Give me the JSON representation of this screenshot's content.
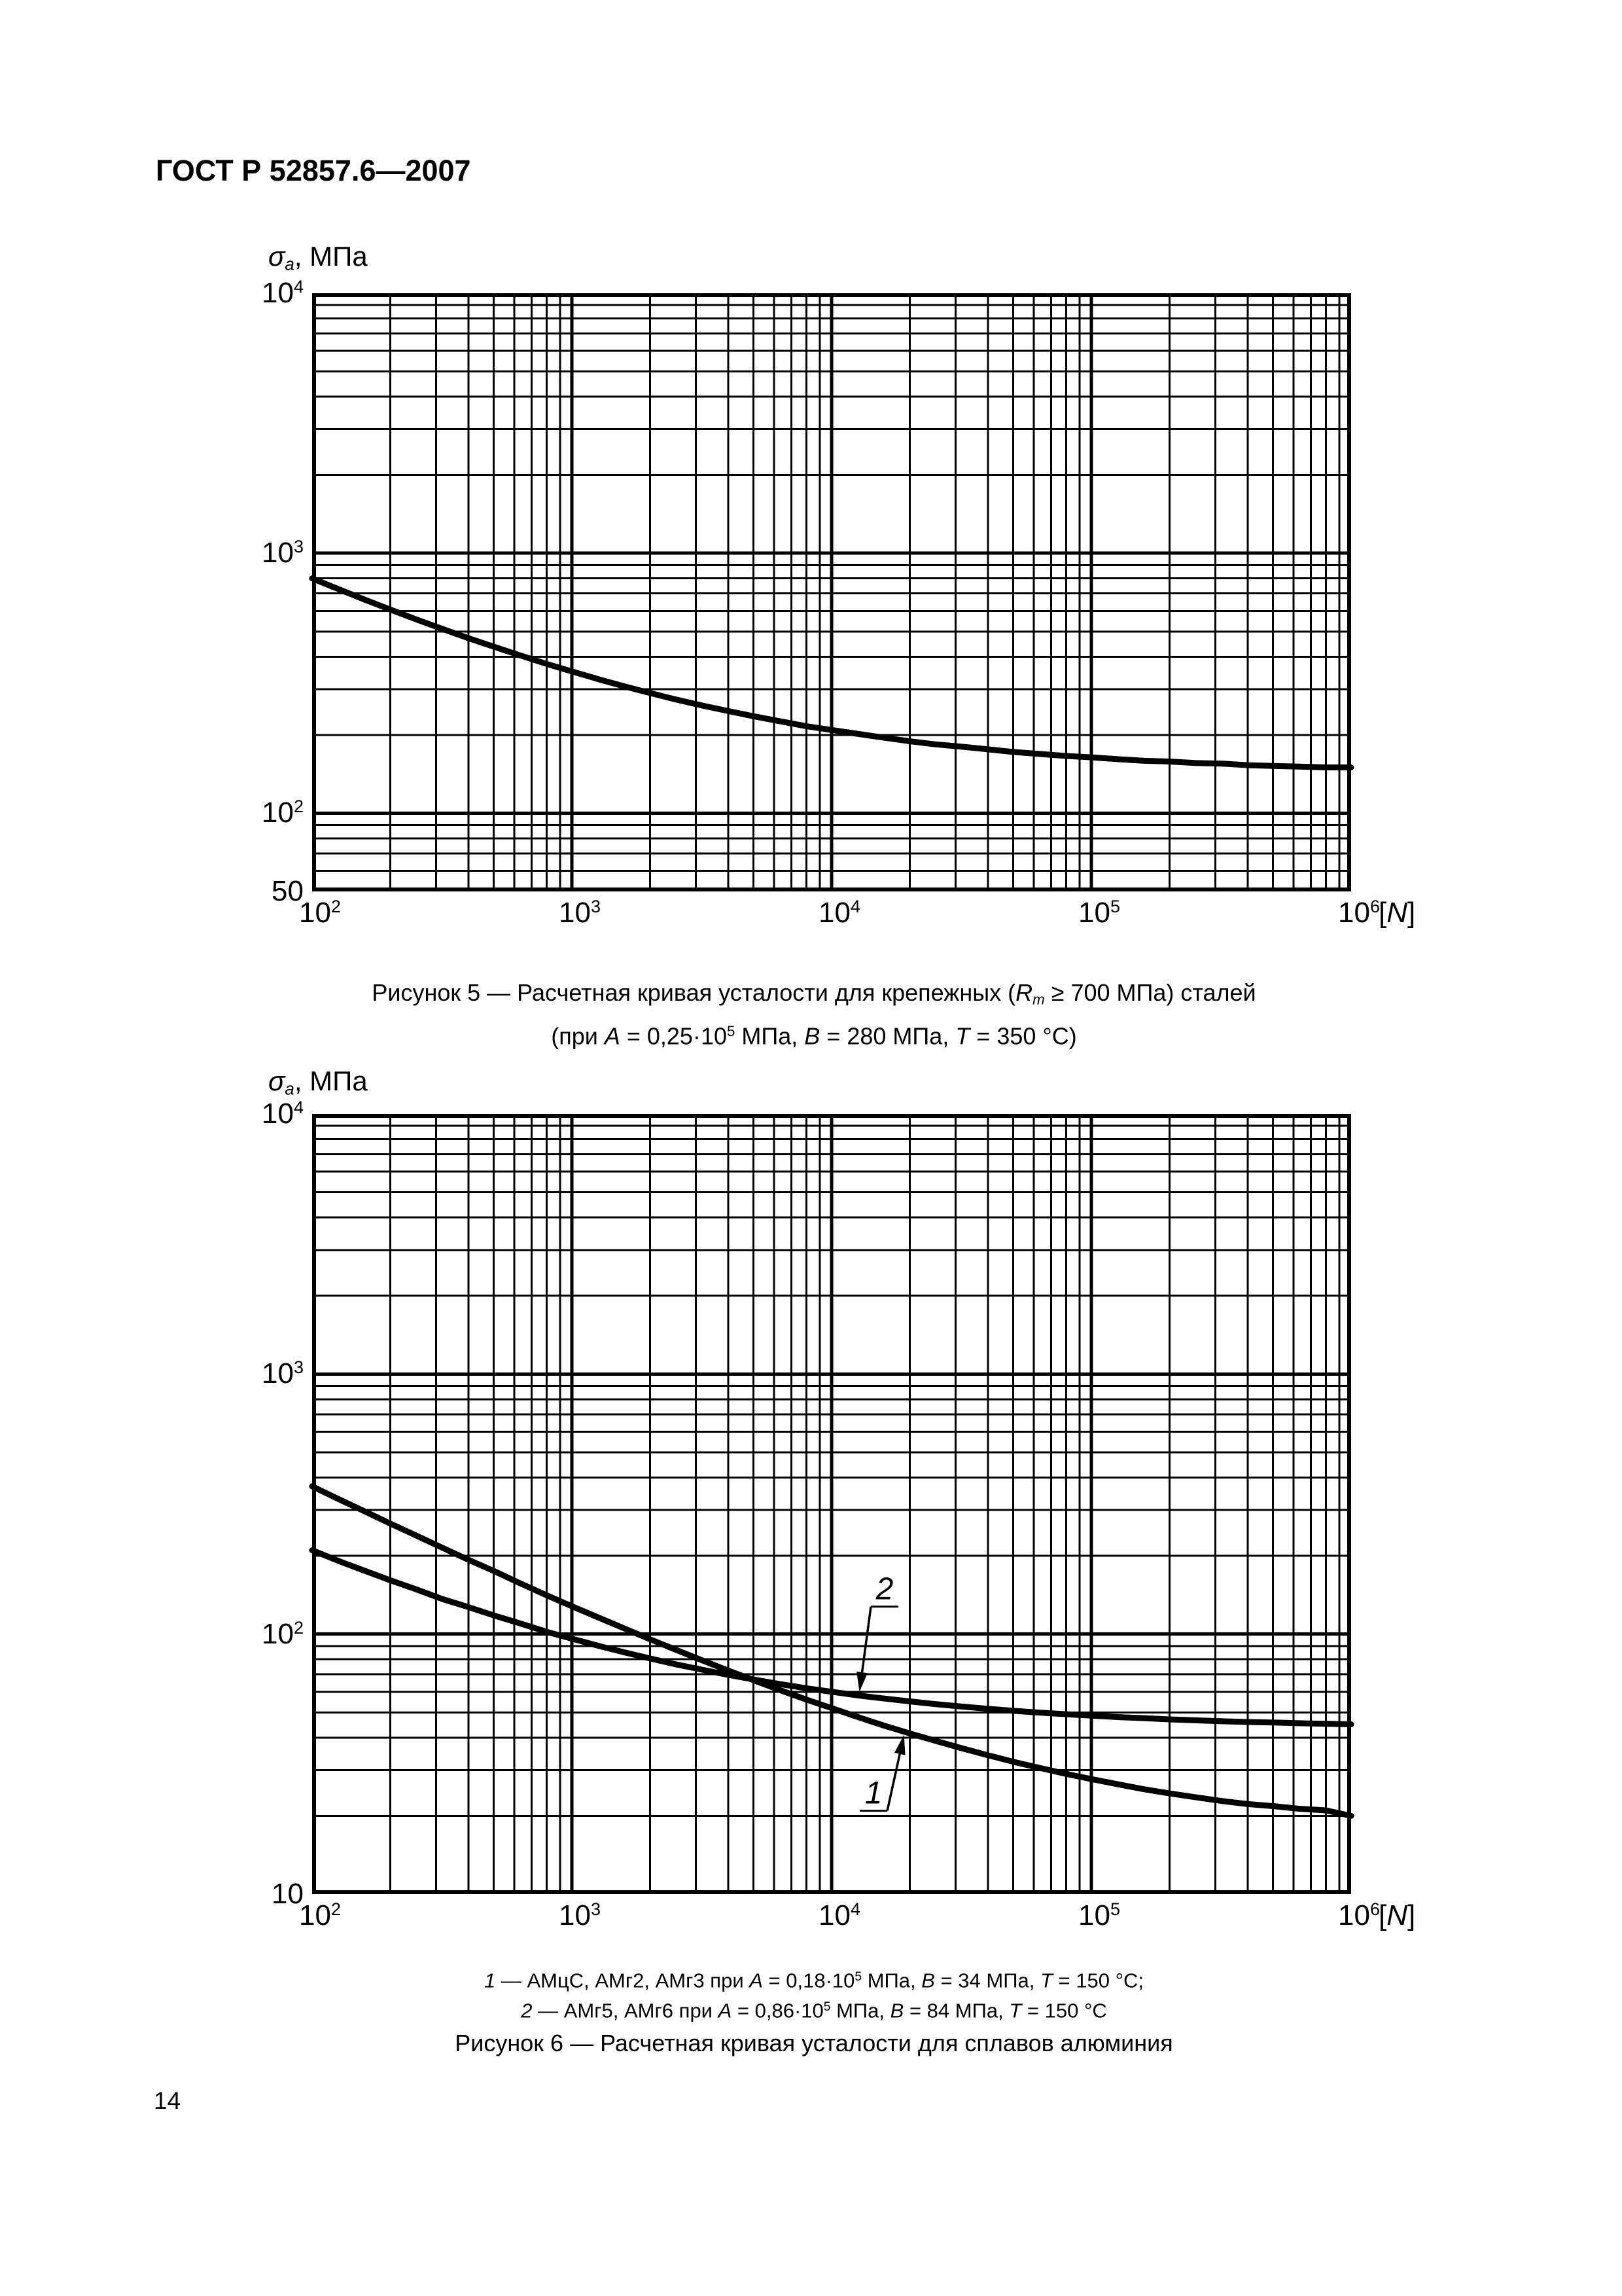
{
  "page": {
    "header": "ГОСТ Р 52857.6—2007",
    "page_number": "14",
    "background": "#ffffff",
    "ink_color": "#000000"
  },
  "figure5": {
    "y_axis_title": [
      {
        "text": "σ",
        "style": "i"
      },
      {
        "text": "a",
        "style": "i-sub"
      },
      {
        "text": ", МПа"
      }
    ],
    "y_ticks": [
      {
        "base": "10",
        "exp": "4",
        "value": 10000
      },
      {
        "base": "10",
        "exp": "3",
        "value": 1000
      },
      {
        "base": "10",
        "exp": "2",
        "value": 100
      },
      {
        "base": "50",
        "exp": "",
        "value": 50
      }
    ],
    "x_ticks": [
      {
        "base": "10",
        "exp": "2",
        "value": 100
      },
      {
        "base": "10",
        "exp": "3",
        "value": 1000
      },
      {
        "base": "10",
        "exp": "4",
        "value": 10000
      },
      {
        "base": "10",
        "exp": "5",
        "value": 100000
      },
      {
        "base": "10",
        "exp": "6",
        "value": 1000000
      }
    ],
    "x_unit": [
      {
        "text": "["
      },
      {
        "text": "N",
        "style": "i"
      },
      {
        "text": "]"
      }
    ],
    "caption_line1": [
      {
        "text": "Рисунок 5  —  Расчетная кривая усталости для крепежных ("
      },
      {
        "text": "R",
        "style": "i"
      },
      {
        "text": "m",
        "style": "i-sub"
      },
      {
        "text": " ≥ 700 МПа) сталей"
      }
    ],
    "caption_line2": [
      {
        "text": "(при "
      },
      {
        "text": "A",
        "style": "i"
      },
      {
        "text": " = 0,25·10"
      },
      {
        "text": "5",
        "style": "sup"
      },
      {
        "text": " МПа, "
      },
      {
        "text": "B",
        "style": "i"
      },
      {
        "text": " = 280 МПа, "
      },
      {
        "text": "T",
        "style": "i"
      },
      {
        "text": " = 350 °C)"
      }
    ]
  },
  "figure6": {
    "y_axis_title": [
      {
        "text": "σ",
        "style": "i"
      },
      {
        "text": "a",
        "style": "i-sub"
      },
      {
        "text": ", МПа"
      }
    ],
    "y_ticks": [
      {
        "base": "10",
        "exp": "4",
        "value": 10000
      },
      {
        "base": "10",
        "exp": "3",
        "value": 1000
      },
      {
        "base": "10",
        "exp": "2",
        "value": 100
      },
      {
        "base": "10",
        "exp": "",
        "value": 10
      }
    ],
    "x_ticks": [
      {
        "base": "10",
        "exp": "2",
        "value": 100
      },
      {
        "base": "10",
        "exp": "3",
        "value": 1000
      },
      {
        "base": "10",
        "exp": "4",
        "value": 10000
      },
      {
        "base": "10",
        "exp": "5",
        "value": 100000
      },
      {
        "base": "10",
        "exp": "6",
        "value": 1000000
      }
    ],
    "x_unit": [
      {
        "text": "["
      },
      {
        "text": "N",
        "style": "i"
      },
      {
        "text": "]"
      }
    ],
    "legend_line1": [
      {
        "text": "1",
        "style": "i"
      },
      {
        "text": " — АМцС, АМг2, АМг3 при "
      },
      {
        "text": "A",
        "style": "i"
      },
      {
        "text": " = 0,18·10"
      },
      {
        "text": "5",
        "style": "sup"
      },
      {
        "text": " МПа, "
      },
      {
        "text": "B",
        "style": "i"
      },
      {
        "text": " = 34 МПа, "
      },
      {
        "text": "T",
        "style": "i"
      },
      {
        "text": " = 150 °C;"
      }
    ],
    "legend_line2": [
      {
        "text": "2",
        "style": "i"
      },
      {
        "text": " — АМг5, АМг6 при "
      },
      {
        "text": "A",
        "style": "i"
      },
      {
        "text": " = 0,86·10"
      },
      {
        "text": "5",
        "style": "sup"
      },
      {
        "text": " МПа, "
      },
      {
        "text": "B",
        "style": "i"
      },
      {
        "text": " = 84 МПа, "
      },
      {
        "text": "T",
        "style": "i"
      },
      {
        "text": " = 150 °C"
      }
    ],
    "caption": [
      {
        "text": "Рисунок 6  —  Расчетная кривая усталости для сплавов алюминия"
      }
    ]
  },
  "chart_data": [
    {
      "id": "figure5",
      "type": "line",
      "title": "Расчетная кривая усталости для крепежных (Rm ≥ 700 МПа) сталей",
      "subtitle": "при A = 0,25·10^5 МПа, B = 280 МПа, T = 350 °C",
      "xlabel": "[N]",
      "ylabel": "σa, МПа",
      "x_scale": "log",
      "y_scale": "log",
      "x_range": [
        100,
        1000000
      ],
      "y_range": [
        50,
        10000
      ],
      "grid": "log-minor-and-major",
      "legend_position": "none",
      "series": [
        {
          "name": "крепежные стали Rm ≥ 700 МПа (A = 0,25·10^5 МПа, B = 280 МПа, T = 350 °C)",
          "points": [
            [
              100,
              800
            ],
            [
              130,
              719
            ],
            [
              160,
              662
            ],
            [
              200,
              607
            ],
            [
              250,
              558
            ],
            [
              320,
              510
            ],
            [
              400,
              471
            ],
            [
              500,
              437
            ],
            [
              630,
              405
            ],
            [
              800,
              375
            ],
            [
              1000,
              351
            ],
            [
              1300,
              325
            ],
            [
              1600,
              307
            ],
            [
              2000,
              290
            ],
            [
              2500,
              274
            ],
            [
              3200,
              259
            ],
            [
              4000,
              247
            ],
            [
              5000,
              236
            ],
            [
              6300,
              226
            ],
            [
              8000,
              216
            ],
            [
              10000,
              209
            ],
            [
              13000,
              201
            ],
            [
              16000,
              195
            ],
            [
              20000,
              189
            ],
            [
              25000,
              184
            ],
            [
              32000,
              180
            ],
            [
              40000,
              176
            ],
            [
              50000,
              172
            ],
            [
              63000,
              169
            ],
            [
              80000,
              166
            ],
            [
              100000,
              164
            ],
            [
              130000,
              161
            ],
            [
              160000,
              159
            ],
            [
              200000,
              158
            ],
            [
              250000,
              156
            ],
            [
              320000,
              155
            ],
            [
              400000,
              153
            ],
            [
              500000,
              152
            ],
            [
              630000,
              151
            ],
            [
              800000,
              150
            ],
            [
              1000000,
              150
            ]
          ]
        }
      ],
      "annotations": []
    },
    {
      "id": "figure6",
      "type": "line",
      "title": "Расчетная кривая усталости для сплавов алюминия",
      "xlabel": "[N]",
      "ylabel": "σa, МПа",
      "x_scale": "log",
      "y_scale": "log",
      "x_range": [
        100,
        1000000
      ],
      "y_range": [
        10,
        10000
      ],
      "grid": "log-minor-and-major",
      "legend_position": "below",
      "series": [
        {
          "name": "1 — АМцС, АМг2, АМг3 (A = 0,18·10^5 МПа, B = 34 МПа, T = 150 °C)",
          "points": [
            [
              100,
              370
            ],
            [
              130,
              326
            ],
            [
              160,
              296
            ],
            [
              200,
              266
            ],
            [
              250,
              240
            ],
            [
              320,
              214
            ],
            [
              400,
              193
            ],
            [
              500,
              175
            ],
            [
              630,
              157
            ],
            [
              800,
              141
            ],
            [
              1000,
              128
            ],
            [
              1300,
              114.5
            ],
            [
              1600,
              104.9
            ],
            [
              2000,
              95.5
            ],
            [
              2500,
              87.2
            ],
            [
              3200,
              79.0
            ],
            [
              4000,
              72.4
            ],
            [
              5000,
              66.5
            ],
            [
              6300,
              61.0
            ],
            [
              8000,
              56.0
            ],
            [
              10000,
              51.9
            ],
            [
              13000,
              47.5
            ],
            [
              16000,
              44.4
            ],
            [
              20000,
              41.5
            ],
            [
              25000,
              38.9
            ],
            [
              32000,
              36.3
            ],
            [
              40000,
              34.2
            ],
            [
              50000,
              32.3
            ],
            [
              63000,
              30.6
            ],
            [
              80000,
              29.0
            ],
            [
              100000,
              27.7
            ],
            [
              130000,
              26.3
            ],
            [
              160000,
              25.3
            ],
            [
              200000,
              24.4
            ],
            [
              250000,
              23.6
            ],
            [
              320000,
              22.8
            ],
            [
              400000,
              22.2
            ],
            [
              500000,
              21.8
            ],
            [
              630000,
              21.3
            ],
            [
              800000,
              21.0
            ],
            [
              1000000,
              20.0
            ]
          ]
        },
        {
          "name": "2 — АМг5, АМг6 (A = 0,86·10^5 МПа, B = 84 МПа, T = 150 °C)",
          "points": [
            [
              100,
              210
            ],
            [
              130,
              189
            ],
            [
              160,
              175
            ],
            [
              200,
              161
            ],
            [
              250,
              149
            ],
            [
              320,
              136
            ],
            [
              400,
              127
            ],
            [
              500,
              118
            ],
            [
              630,
              110
            ],
            [
              800,
              102
            ],
            [
              1000,
              96.0
            ],
            [
              1300,
              89.5
            ],
            [
              1600,
              85.0
            ],
            [
              2000,
              80.6
            ],
            [
              2500,
              76.6
            ],
            [
              3200,
              72.8
            ],
            [
              4000,
              69.7
            ],
            [
              5000,
              66.9
            ],
            [
              6300,
              64.3
            ],
            [
              8000,
              61.9
            ],
            [
              10000,
              60.0
            ],
            [
              13000,
              57.9
            ],
            [
              16000,
              56.5
            ],
            [
              20000,
              55.1
            ],
            [
              25000,
              53.8
            ],
            [
              32000,
              52.6
            ],
            [
              40000,
              51.6
            ],
            [
              50000,
              50.7
            ],
            [
              63000,
              49.9
            ],
            [
              80000,
              49.2
            ],
            [
              100000,
              48.6
            ],
            [
              130000,
              47.9
            ],
            [
              160000,
              47.5
            ],
            [
              200000,
              47.0
            ],
            [
              250000,
              46.6
            ],
            [
              320000,
              46.2
            ],
            [
              400000,
              45.9
            ],
            [
              500000,
              45.7
            ],
            [
              630000,
              45.4
            ],
            [
              800000,
              45.2
            ],
            [
              1000000,
              45.0
            ]
          ]
        }
      ],
      "annotations": [
        {
          "label": "1",
          "series": 0,
          "label_at": [
            14500,
            24.6
          ],
          "arrow_tip": [
            19000,
            41
          ]
        },
        {
          "label": "2",
          "series": 1,
          "label_at": [
            16000,
            150
          ],
          "arrow_tip": [
            12800,
            60
          ]
        }
      ]
    }
  ]
}
